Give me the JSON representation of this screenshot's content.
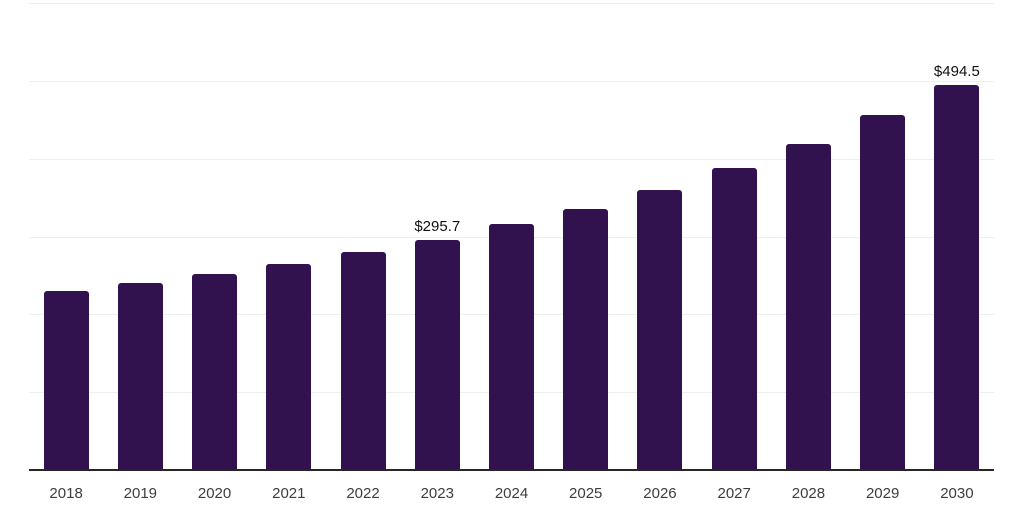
{
  "chart_data": {
    "type": "bar",
    "title": "",
    "xlabel": "",
    "ylabel": "",
    "categories": [
      "2018",
      "2019",
      "2020",
      "2021",
      "2022",
      "2023",
      "2024",
      "2025",
      "2026",
      "2027",
      "2028",
      "2029",
      "2030"
    ],
    "values": [
      230.0,
      240.2,
      251.8,
      264.7,
      279.7,
      295.7,
      315.7,
      335.7,
      359.4,
      387.6,
      418.5,
      455.7,
      494.5
    ],
    "data_labels": [
      "",
      "",
      "",
      "",
      "",
      "$295.7",
      "",
      "",
      "",
      "",
      "",
      "",
      "$494.5"
    ],
    "ylim": [
      0,
      600
    ],
    "grid_interval": 100,
    "grid": true,
    "legend": false,
    "colors": {
      "bar": "#32124E",
      "axis_line": "#262626",
      "gridline": "#EFEFEF",
      "tick_label": "#3D3D3D",
      "data_label": "#111111",
      "background": "#FFFFFF"
    }
  }
}
